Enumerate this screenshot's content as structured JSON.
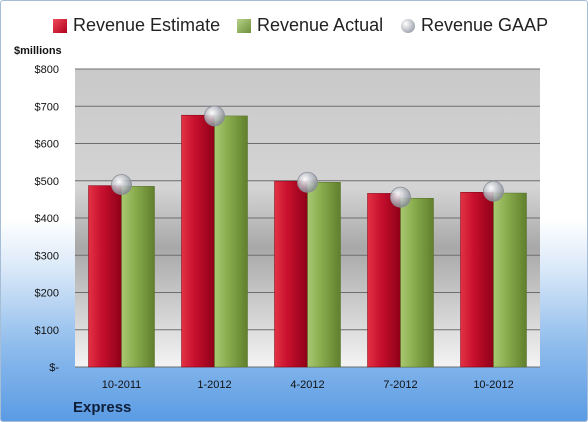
{
  "legend": {
    "estimate": "Revenue Estimate",
    "actual": "Revenue Actual",
    "gaap": "Revenue GAAP"
  },
  "unit_label": "$millions",
  "company": "Express",
  "colors": {
    "estimate": "#c8102e",
    "actual": "#8aad4e",
    "gaap": "#b8bcc4"
  },
  "chart_data": {
    "type": "bar",
    "categories": [
      "10-2011",
      "1-2012",
      "4-2012",
      "7-2012",
      "10-2012"
    ],
    "series": [
      {
        "name": "Revenue Estimate",
        "values": [
          487,
          676,
          499,
          466,
          469
        ]
      },
      {
        "name": "Revenue Actual",
        "values": [
          485,
          674,
          496,
          453,
          467
        ]
      },
      {
        "name": "Revenue GAAP",
        "type": "scatter",
        "values": [
          490,
          674,
          496,
          456,
          472
        ]
      }
    ],
    "ylabel": "$millions",
    "ylim": [
      0,
      800
    ],
    "yticks": [
      0,
      100,
      200,
      300,
      400,
      500,
      600,
      700,
      800
    ],
    "ytick_labels": [
      "$-",
      "$100",
      "$200",
      "$300",
      "$400",
      "$500",
      "$600",
      "$700",
      "$800"
    ],
    "grid": true,
    "legend_position": "top"
  }
}
